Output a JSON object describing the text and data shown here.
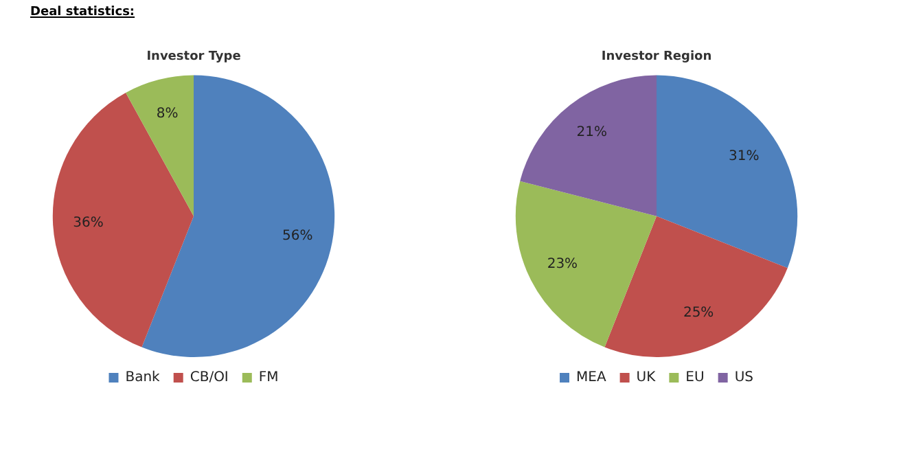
{
  "chart_data": [
    {
      "type": "pie",
      "title": "Investor Type",
      "annotations": [
        "Deal statistics:"
      ],
      "categories": [
        "Bank",
        "CB/OI",
        "FM"
      ],
      "values": [
        56,
        36,
        8
      ],
      "value_labels": [
        "56%",
        "36%",
        "8%"
      ],
      "colors": [
        "#4f81bd",
        "#c0504d",
        "#9bbb59"
      ],
      "legend": "bottom"
    },
    {
      "type": "pie",
      "title": "Investor Region",
      "categories": [
        "MEA",
        "UK",
        "EU",
        "US"
      ],
      "values": [
        31,
        25,
        23,
        21
      ],
      "value_labels": [
        "31%",
        "25%",
        "23%",
        "21%"
      ],
      "colors": [
        "#4f81bd",
        "#c0504d",
        "#9bbb59",
        "#8064a2"
      ],
      "legend": "bottom"
    }
  ]
}
